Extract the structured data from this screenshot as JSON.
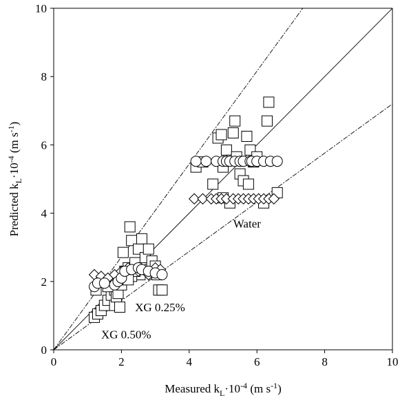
{
  "chart_data": {
    "type": "scatter",
    "title": "",
    "xlabel": {
      "main": "Measured k",
      "sub": "L",
      "mid": "·10",
      "sup": "-4",
      "unit": " (m s",
      "unit_sup": "-1",
      "end": ")"
    },
    "ylabel": {
      "main": "Predicted k",
      "sub": "L",
      "mid": "·10",
      "sup": "-4",
      "unit": " (m s",
      "unit_sup": "-1",
      "end": ")"
    },
    "xlim": [
      0,
      10
    ],
    "ylim": [
      0,
      10
    ],
    "xticks": [
      0,
      2,
      4,
      6,
      8,
      10
    ],
    "yticks": [
      0,
      2,
      4,
      6,
      8,
      10
    ],
    "grid": false,
    "legend": "none",
    "reference_lines": [
      {
        "kind": "parity",
        "style": "solid",
        "slope": 1.0
      },
      {
        "kind": "upper-bound",
        "style": "dashed",
        "slope": 1.36
      },
      {
        "kind": "lower-bound",
        "style": "dashed",
        "slope": 0.72
      }
    ],
    "annotations": [
      {
        "text": "Water",
        "x": 5.3,
        "y": 3.7
      },
      {
        "text": "XG 0.25%",
        "x": 2.4,
        "y": 1.25
      },
      {
        "text": "XG 0.50%",
        "x": 1.4,
        "y": 0.45
      }
    ],
    "series": [
      {
        "marker": "square",
        "points": [
          [
            1.2,
            0.95
          ],
          [
            1.3,
            1.05
          ],
          [
            1.4,
            1.15
          ],
          [
            1.5,
            1.3
          ],
          [
            1.6,
            1.45
          ],
          [
            1.7,
            1.6
          ],
          [
            1.8,
            1.75
          ],
          [
            1.9,
            1.95
          ],
          [
            2.0,
            2.1
          ],
          [
            1.25,
            1.75
          ],
          [
            1.6,
            1.85
          ],
          [
            1.8,
            1.3
          ],
          [
            1.85,
            1.55
          ],
          [
            1.9,
            1.65
          ],
          [
            1.95,
            1.25
          ],
          [
            2.0,
            1.9
          ],
          [
            2.1,
            2.2
          ],
          [
            1.95,
            2.05
          ],
          [
            2.05,
            2.85
          ],
          [
            2.1,
            2.3
          ],
          [
            2.2,
            2.4
          ],
          [
            2.25,
            3.6
          ],
          [
            2.3,
            3.2
          ],
          [
            2.4,
            2.55
          ],
          [
            2.5,
            2.95
          ],
          [
            2.55,
            2.2
          ],
          [
            2.6,
            3.25
          ],
          [
            2.65,
            2.4
          ],
          [
            2.7,
            2.7
          ],
          [
            2.8,
            2.95
          ],
          [
            2.85,
            2.35
          ],
          [
            2.9,
            2.6
          ],
          [
            3.0,
            2.45
          ],
          [
            3.05,
            2.2
          ],
          [
            3.1,
            1.75
          ],
          [
            3.2,
            1.75
          ],
          [
            2.3,
            2.15
          ],
          [
            2.4,
            2.3
          ],
          [
            2.2,
            2.05
          ],
          [
            4.2,
            5.35
          ],
          [
            4.4,
            5.5
          ],
          [
            4.7,
            4.85
          ],
          [
            4.85,
            6.2
          ],
          [
            4.95,
            6.3
          ],
          [
            5.0,
            5.35
          ],
          [
            5.1,
            5.85
          ],
          [
            5.25,
            5.55
          ],
          [
            5.3,
            6.35
          ],
          [
            5.35,
            6.7
          ],
          [
            5.4,
            5.65
          ],
          [
            5.5,
            5.15
          ],
          [
            5.6,
            4.95
          ],
          [
            5.7,
            6.25
          ],
          [
            5.75,
            4.85
          ],
          [
            5.8,
            5.85
          ],
          [
            5.9,
            5.5
          ],
          [
            6.0,
            5.65
          ],
          [
            6.3,
            6.7
          ],
          [
            6.35,
            7.25
          ],
          [
            6.6,
            4.6
          ],
          [
            5.0,
            4.45
          ],
          [
            5.2,
            4.3
          ],
          [
            6.2,
            4.3
          ]
        ]
      },
      {
        "marker": "diamond",
        "points": [
          [
            1.2,
            2.2
          ],
          [
            1.4,
            2.15
          ],
          [
            1.6,
            2.1
          ],
          [
            1.8,
            2.2
          ],
          [
            2.0,
            2.3
          ],
          [
            2.2,
            2.4
          ],
          [
            2.5,
            2.3
          ],
          [
            2.8,
            2.2
          ],
          [
            3.0,
            2.4
          ],
          [
            3.15,
            2.35
          ],
          [
            4.15,
            4.42
          ],
          [
            4.4,
            4.42
          ],
          [
            4.65,
            4.42
          ],
          [
            4.8,
            4.42
          ],
          [
            4.95,
            4.42
          ],
          [
            5.1,
            4.42
          ],
          [
            5.3,
            4.42
          ],
          [
            5.45,
            4.42
          ],
          [
            5.6,
            4.42
          ],
          [
            5.75,
            4.42
          ],
          [
            5.9,
            4.42
          ],
          [
            6.05,
            4.42
          ],
          [
            6.2,
            4.42
          ],
          [
            6.35,
            4.42
          ],
          [
            6.5,
            4.42
          ]
        ]
      },
      {
        "marker": "circle",
        "points": [
          [
            1.2,
            1.85
          ],
          [
            1.3,
            1.95
          ],
          [
            1.5,
            1.95
          ],
          [
            1.8,
            1.9
          ],
          [
            1.9,
            2.0
          ],
          [
            2.0,
            2.1
          ],
          [
            2.1,
            2.3
          ],
          [
            2.3,
            2.35
          ],
          [
            2.5,
            2.4
          ],
          [
            2.6,
            2.35
          ],
          [
            2.8,
            2.3
          ],
          [
            3.0,
            2.25
          ],
          [
            3.2,
            2.2
          ],
          [
            4.2,
            5.52
          ],
          [
            4.5,
            5.52
          ],
          [
            4.8,
            5.52
          ],
          [
            5.0,
            5.52
          ],
          [
            5.1,
            5.52
          ],
          [
            5.2,
            5.52
          ],
          [
            5.35,
            5.52
          ],
          [
            5.5,
            5.52
          ],
          [
            5.6,
            5.52
          ],
          [
            5.8,
            5.52
          ],
          [
            5.85,
            5.52
          ],
          [
            6.0,
            5.52
          ],
          [
            6.2,
            5.52
          ],
          [
            6.4,
            5.52
          ],
          [
            6.6,
            5.52
          ]
        ]
      }
    ]
  }
}
